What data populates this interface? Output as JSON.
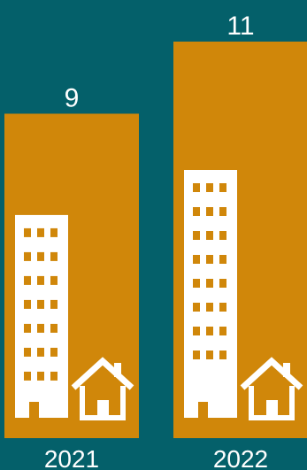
{
  "colors": {
    "background": "#04606A",
    "bar": "#D0870A",
    "icon": "#FFFFFF",
    "text": "#FFFFFF"
  },
  "icons": {
    "building": "office-building-icon",
    "house": "house-icon"
  },
  "chart_data": {
    "type": "bar",
    "title": "",
    "xlabel": "",
    "ylabel": "",
    "categories": [
      "2021",
      "2022"
    ],
    "values": [
      9,
      11
    ],
    "value_labels": [
      "9",
      "11"
    ],
    "ylim": [
      0,
      11
    ],
    "grid": false,
    "legend": "none"
  }
}
